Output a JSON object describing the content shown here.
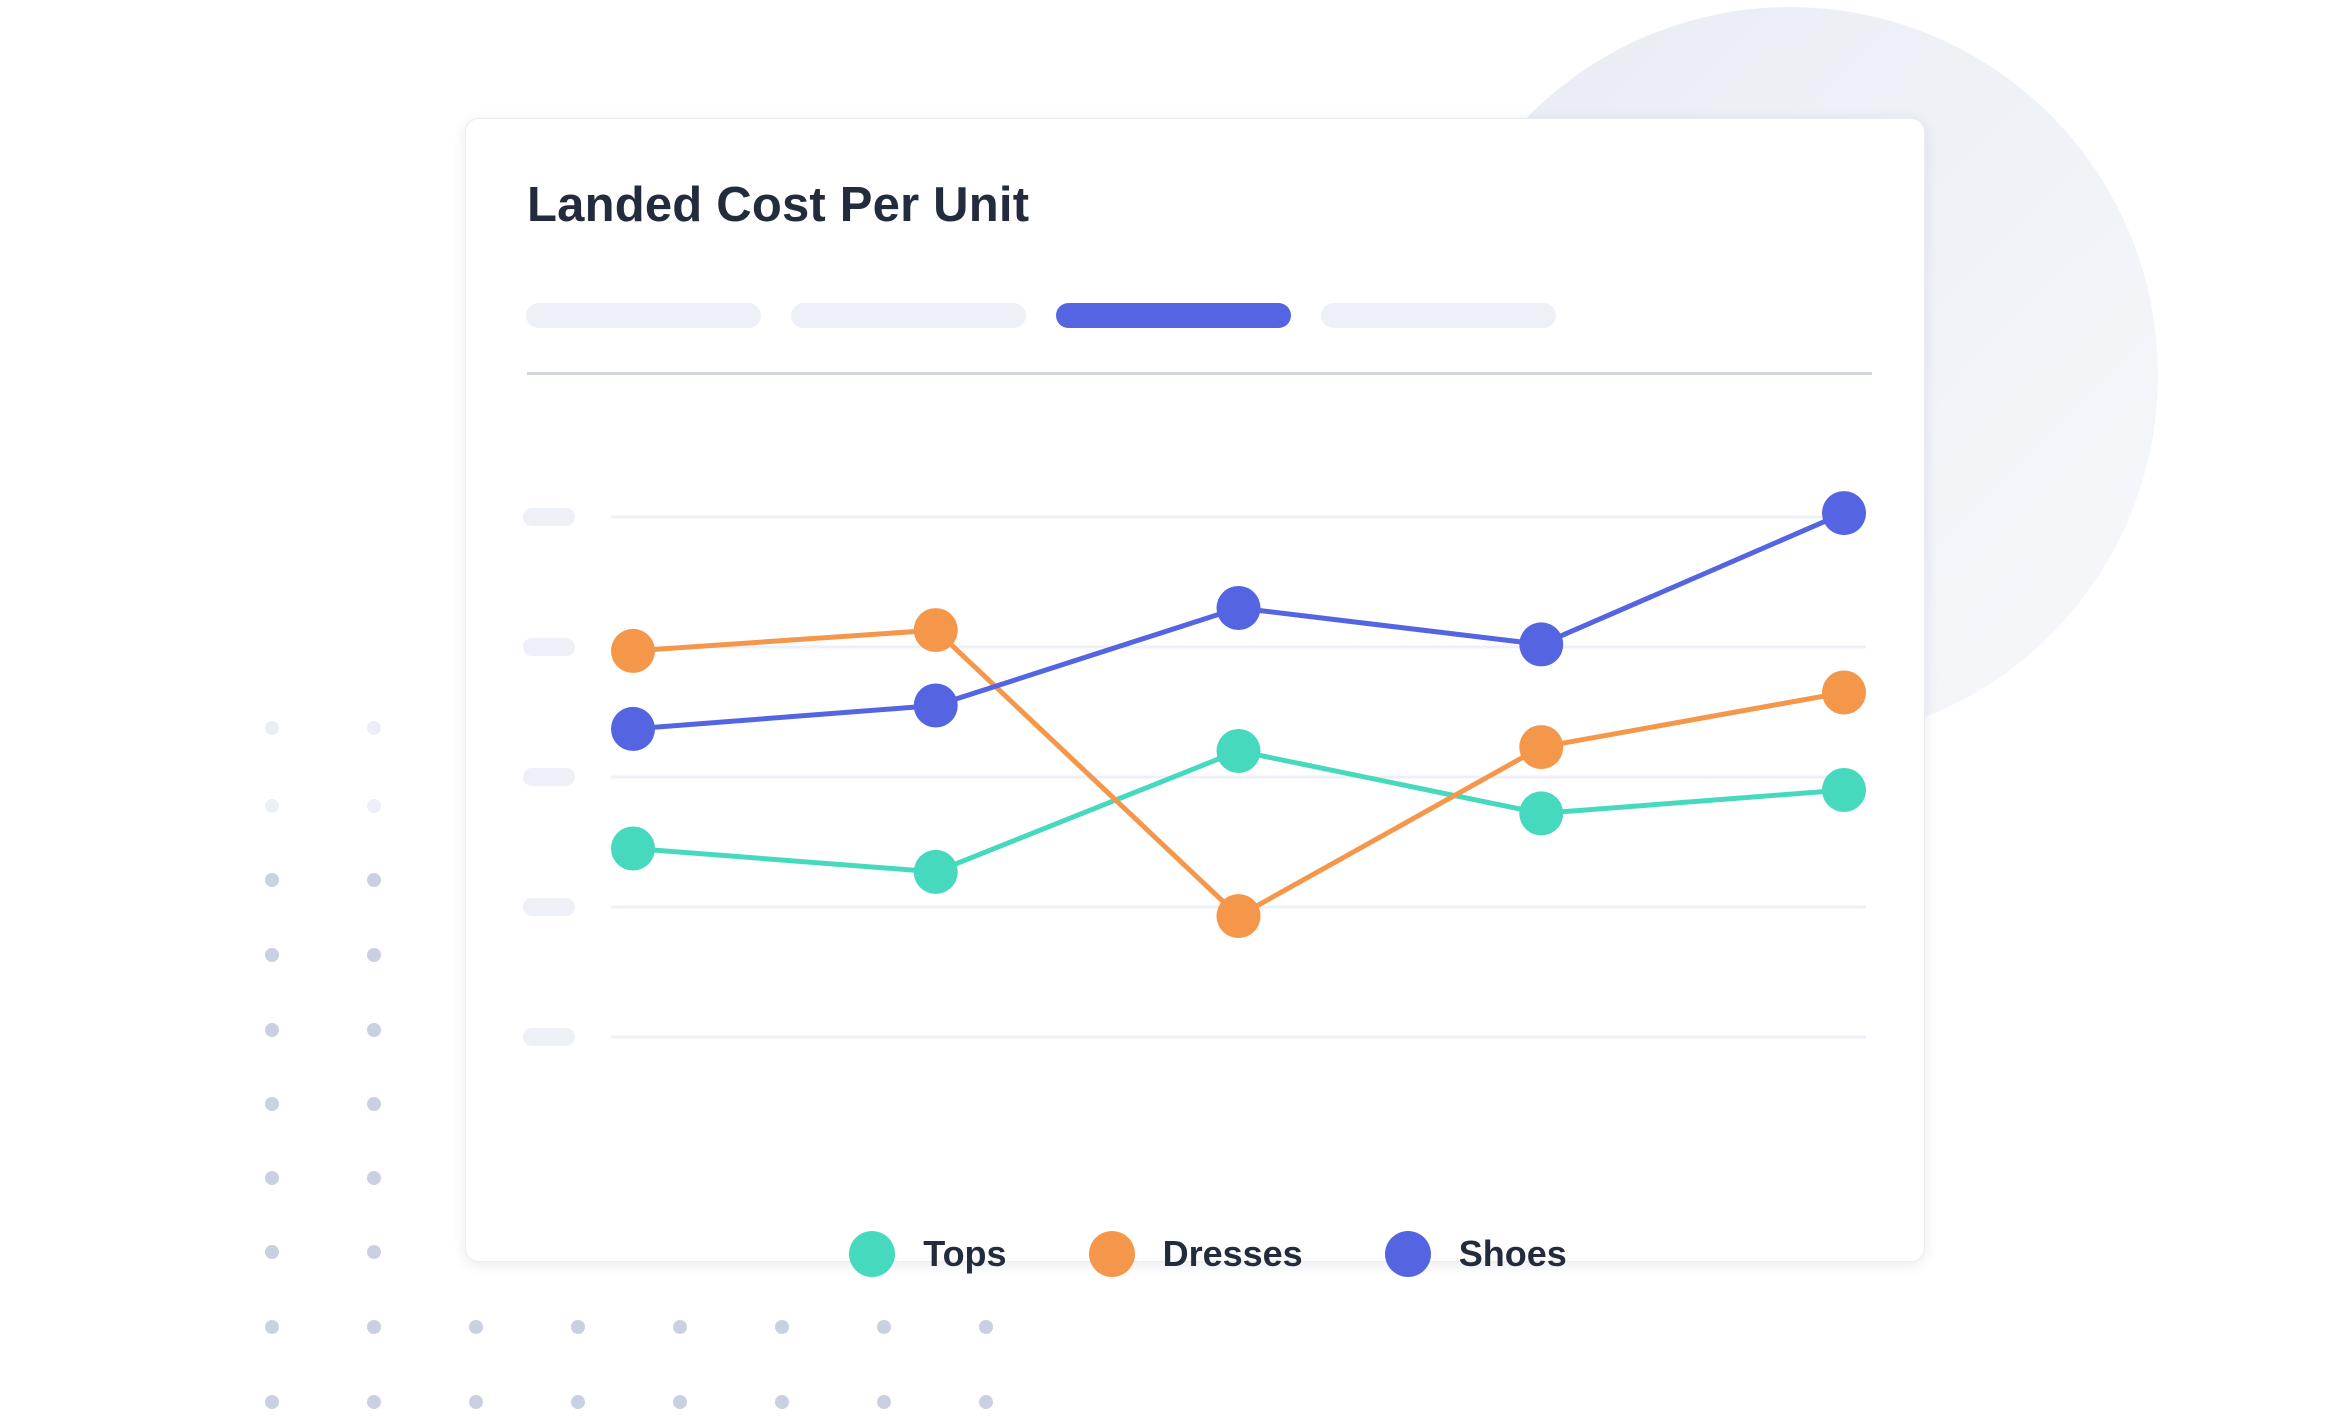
{
  "card": {
    "title": "Landed Cost Per Unit",
    "tabs": [
      {
        "active": false
      },
      {
        "active": false
      },
      {
        "active": true
      },
      {
        "active": false
      }
    ]
  },
  "colors": {
    "tops": "#47d9bd",
    "dresses": "#f5974b",
    "shoes": "#5564e0",
    "active_tab": "#5564e0",
    "inactive_tab": "#edf1f7",
    "gridline": "#edf1f7",
    "dot_pattern": "#c9d0e1",
    "backdrop_circle": "#eef1f6"
  },
  "chart_data": {
    "type": "line",
    "title": "Landed Cost Per Unit",
    "xlabel": "",
    "ylabel": "",
    "x": [
      1,
      2,
      3,
      4,
      5
    ],
    "ylim": [
      0,
      4
    ],
    "yticks": [
      0,
      1,
      2,
      3,
      4
    ],
    "ytick_labels_visible": false,
    "grid": true,
    "legend_position": "bottom-center",
    "series": [
      {
        "name": "Tops",
        "color": "#47d9bd",
        "values": [
          1.45,
          1.27,
          2.2,
          1.72,
          1.9
        ]
      },
      {
        "name": "Dresses",
        "color": "#f5974b",
        "values": [
          2.97,
          3.13,
          0.93,
          2.23,
          2.65
        ]
      },
      {
        "name": "Shoes",
        "color": "#5564e0",
        "values": [
          2.37,
          2.55,
          3.3,
          3.02,
          4.03
        ]
      }
    ]
  }
}
